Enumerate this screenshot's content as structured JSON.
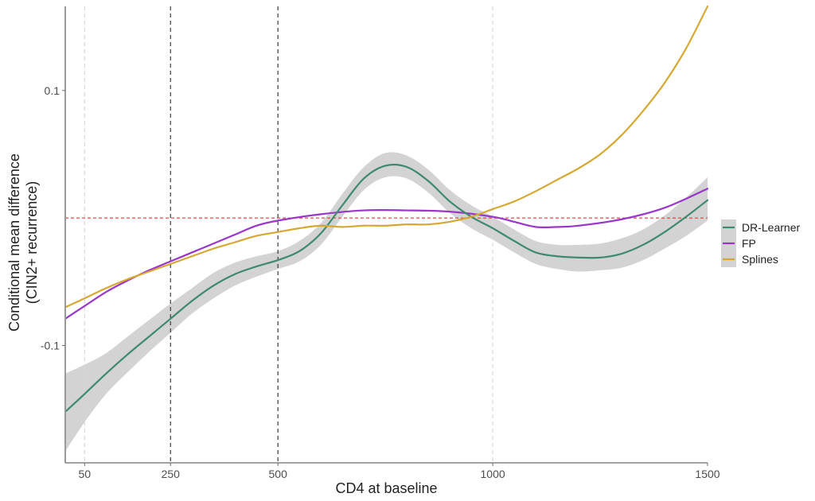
{
  "chart_data": {
    "type": "line",
    "xlabel": "CD4 at baseline",
    "ylabel_lines": [
      "Conditional mean difference",
      "(CIN2+ recurrence)"
    ],
    "xlim": [
      5,
      1500
    ],
    "ylim": [
      -0.192,
      0.166
    ],
    "xticks": [
      50,
      250,
      500,
      1000,
      1500
    ],
    "xtick_labels": [
      "50",
      "250",
      "500",
      "1000",
      "1500"
    ],
    "yticks": [
      -0.1,
      0.1
    ],
    "ytick_labels": [
      "-0.1",
      "0.1"
    ],
    "grid": false,
    "reference_lines": {
      "vertical_dashed_gray": [
        50,
        1000
      ],
      "vertical_dashed_dark": [
        250,
        500
      ],
      "horizontal_dashed_red": 0.0
    },
    "legend_position": "right",
    "series": [
      {
        "name": "DR-Learner",
        "color": "#3f8a6e",
        "ribbon_color": "#d3d3d3",
        "x": [
          5,
          50,
          100,
          150,
          200,
          250,
          300,
          350,
          400,
          450,
          500,
          550,
          600,
          650,
          700,
          750,
          800,
          850,
          900,
          950,
          1000,
          1050,
          1100,
          1150,
          1200,
          1250,
          1300,
          1350,
          1400,
          1450,
          1500
        ],
        "y": [
          -0.152,
          -0.138,
          -0.122,
          -0.107,
          -0.093,
          -0.079,
          -0.065,
          -0.053,
          -0.044,
          -0.038,
          -0.033,
          -0.026,
          -0.012,
          0.01,
          0.031,
          0.041,
          0.04,
          0.029,
          0.013,
          0.001,
          -0.008,
          -0.018,
          -0.027,
          -0.03,
          -0.031,
          -0.031,
          -0.028,
          -0.021,
          -0.011,
          0.001,
          0.014
        ],
        "lower": [
          -0.183,
          -0.16,
          -0.138,
          -0.121,
          -0.105,
          -0.09,
          -0.075,
          -0.063,
          -0.053,
          -0.046,
          -0.04,
          -0.034,
          -0.021,
          0.001,
          0.022,
          0.032,
          0.031,
          0.02,
          0.004,
          -0.008,
          -0.017,
          -0.027,
          -0.036,
          -0.04,
          -0.042,
          -0.041,
          -0.039,
          -0.033,
          -0.024,
          -0.014,
          -0.002
        ],
        "upper": [
          -0.122,
          -0.115,
          -0.106,
          -0.093,
          -0.08,
          -0.067,
          -0.055,
          -0.043,
          -0.035,
          -0.03,
          -0.026,
          -0.018,
          -0.004,
          0.019,
          0.04,
          0.051,
          0.049,
          0.038,
          0.022,
          0.01,
          0.001,
          -0.009,
          -0.018,
          -0.021,
          -0.021,
          -0.02,
          -0.016,
          -0.009,
          0.002,
          0.016,
          0.032
        ]
      },
      {
        "name": "FP",
        "color": "#9a36c9",
        "x": [
          5,
          50,
          100,
          150,
          200,
          250,
          300,
          350,
          400,
          450,
          500,
          600,
          700,
          800,
          900,
          1000,
          1050,
          1100,
          1150,
          1200,
          1300,
          1400,
          1500
        ],
        "y": [
          -0.079,
          -0.069,
          -0.058,
          -0.049,
          -0.041,
          -0.034,
          -0.027,
          -0.02,
          -0.013,
          -0.006,
          -0.002,
          0.003,
          0.006,
          0.006,
          0.005,
          0.001,
          -0.003,
          -0.007,
          -0.007,
          -0.006,
          -0.001,
          0.008,
          0.023
        ]
      },
      {
        "name": "Splines",
        "color": "#d6a832",
        "x": [
          5,
          50,
          100,
          150,
          200,
          250,
          300,
          350,
          400,
          450,
          500,
          550,
          600,
          650,
          700,
          750,
          800,
          850,
          900,
          950,
          1000,
          1050,
          1100,
          1150,
          1200,
          1250,
          1300,
          1350,
          1400,
          1450,
          1500
        ],
        "y": [
          -0.07,
          -0.063,
          -0.055,
          -0.048,
          -0.042,
          -0.036,
          -0.03,
          -0.024,
          -0.019,
          -0.014,
          -0.011,
          -0.008,
          -0.006,
          -0.007,
          -0.006,
          -0.006,
          -0.005,
          -0.005,
          -0.003,
          0.001,
          0.007,
          0.013,
          0.021,
          0.03,
          0.039,
          0.05,
          0.065,
          0.084,
          0.106,
          0.133,
          0.166
        ]
      }
    ]
  }
}
